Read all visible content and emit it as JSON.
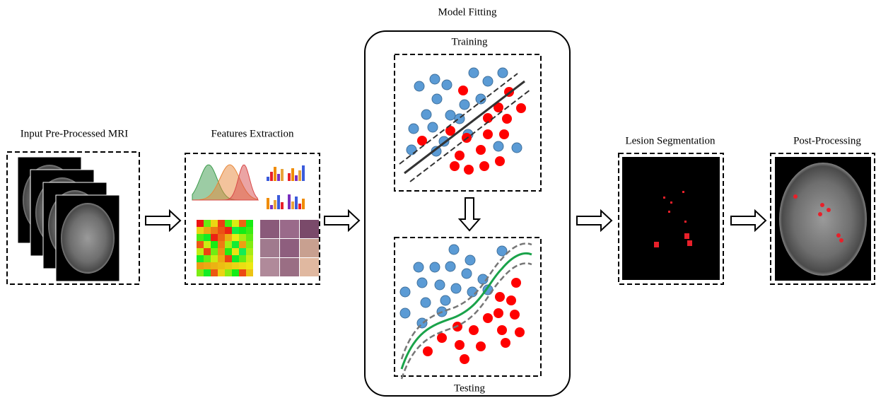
{
  "stages": [
    {
      "label": "Input Pre-Processed MRI"
    },
    {
      "label": "Features Extraction"
    },
    {
      "label": "Model Fitting",
      "parts": [
        "Training",
        "Testing"
      ]
    },
    {
      "label": "Lesion Segmentation"
    },
    {
      "label": "Post-Processing"
    }
  ]
}
